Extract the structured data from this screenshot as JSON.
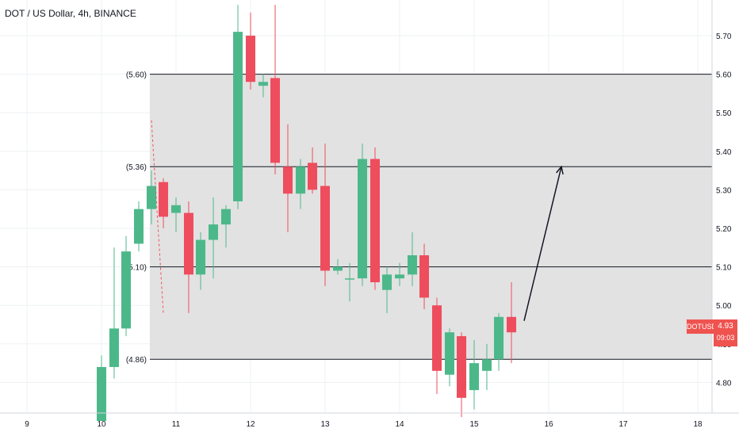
{
  "header": {
    "symbol_title": "DOT / US Dollar, 4h, BINANCE"
  },
  "badges": {
    "ticker": "DOTUSD",
    "last_price": "4.93",
    "countdown": "09:03"
  },
  "colors": {
    "up": "#4cb88a",
    "down": "#ee4d5d",
    "zone": "#e0e0e0",
    "grid": "#eef0f3",
    "level_line": "#131722",
    "badge": "#ef5350"
  },
  "chart_data": {
    "type": "candlestick",
    "title": "DOT / US Dollar, 4h, BINANCE",
    "ylim": [
      4.68,
      5.8
    ],
    "xlim": [
      9.0,
      18.25
    ],
    "y_ticks": [
      "4.80",
      "4.90",
      "5.00",
      "5.10",
      "5.20",
      "5.30",
      "5.40",
      "5.50",
      "5.60",
      "5.70"
    ],
    "x_ticks": [
      "9",
      "10",
      "11",
      "12",
      "13",
      "14",
      "15",
      "16",
      "17",
      "18"
    ],
    "grid": true,
    "zone": {
      "from": 4.86,
      "to": 5.6
    },
    "levels": [
      {
        "value": 5.6,
        "label": "(5.60)"
      },
      {
        "value": 5.36,
        "label": "(5.36)"
      },
      {
        "value": 5.1,
        "label": "(5.10)"
      },
      {
        "value": 4.86,
        "label": "(4.86)"
      }
    ],
    "candles": [
      {
        "x": 10.0,
        "o": 4.7,
        "h": 4.87,
        "l": 4.7,
        "c": 4.84
      },
      {
        "x": 10.17,
        "o": 4.84,
        "h": 5.15,
        "l": 4.81,
        "c": 4.94
      },
      {
        "x": 10.33,
        "o": 4.94,
        "h": 5.18,
        "l": 4.92,
        "c": 5.14
      },
      {
        "x": 10.5,
        "o": 5.16,
        "h": 5.27,
        "l": 5.14,
        "c": 5.25
      },
      {
        "x": 10.67,
        "o": 5.25,
        "h": 5.35,
        "l": 5.21,
        "c": 5.31
      },
      {
        "x": 10.83,
        "o": 5.32,
        "h": 5.33,
        "l": 5.2,
        "c": 5.23
      },
      {
        "x": 11.0,
        "o": 5.24,
        "h": 5.28,
        "l": 5.19,
        "c": 5.26
      },
      {
        "x": 11.17,
        "o": 5.24,
        "h": 5.27,
        "l": 4.98,
        "c": 5.08
      },
      {
        "x": 11.33,
        "o": 5.08,
        "h": 5.19,
        "l": 5.04,
        "c": 5.17
      },
      {
        "x": 11.5,
        "o": 5.17,
        "h": 5.28,
        "l": 5.07,
        "c": 5.21
      },
      {
        "x": 11.67,
        "o": 5.21,
        "h": 5.26,
        "l": 5.15,
        "c": 5.25
      },
      {
        "x": 11.83,
        "o": 5.27,
        "h": 5.78,
        "l": 5.25,
        "c": 5.71
      },
      {
        "x": 12.0,
        "o": 5.7,
        "h": 5.76,
        "l": 5.56,
        "c": 5.58
      },
      {
        "x": 12.17,
        "o": 5.57,
        "h": 5.6,
        "l": 5.54,
        "c": 5.58
      },
      {
        "x": 12.33,
        "o": 5.59,
        "h": 5.78,
        "l": 5.34,
        "c": 5.37
      },
      {
        "x": 12.5,
        "o": 5.36,
        "h": 5.47,
        "l": 5.19,
        "c": 5.29
      },
      {
        "x": 12.67,
        "o": 5.29,
        "h": 5.38,
        "l": 5.25,
        "c": 5.36
      },
      {
        "x": 12.83,
        "o": 5.37,
        "h": 5.41,
        "l": 5.29,
        "c": 5.3
      },
      {
        "x": 13.0,
        "o": 5.31,
        "h": 5.42,
        "l": 5.05,
        "c": 5.09
      },
      {
        "x": 13.17,
        "o": 5.09,
        "h": 5.12,
        "l": 5.08,
        "c": 5.1
      },
      {
        "x": 13.33,
        "o": 5.07,
        "h": 5.11,
        "l": 5.01,
        "c": 5.07
      },
      {
        "x": 13.5,
        "o": 5.07,
        "h": 5.42,
        "l": 5.05,
        "c": 5.38
      },
      {
        "x": 13.67,
        "o": 5.38,
        "h": 5.41,
        "l": 5.04,
        "c": 5.06
      },
      {
        "x": 13.83,
        "o": 5.04,
        "h": 5.1,
        "l": 4.98,
        "c": 5.08
      },
      {
        "x": 14.0,
        "o": 5.07,
        "h": 5.11,
        "l": 5.05,
        "c": 5.08
      },
      {
        "x": 14.17,
        "o": 5.08,
        "h": 5.19,
        "l": 5.05,
        "c": 5.13
      },
      {
        "x": 14.33,
        "o": 5.13,
        "h": 5.16,
        "l": 4.99,
        "c": 5.02
      },
      {
        "x": 14.5,
        "o": 5.0,
        "h": 5.02,
        "l": 4.77,
        "c": 4.83
      },
      {
        "x": 14.67,
        "o": 4.82,
        "h": 4.94,
        "l": 4.79,
        "c": 4.93
      },
      {
        "x": 14.83,
        "o": 4.92,
        "h": 4.93,
        "l": 4.71,
        "c": 4.76
      },
      {
        "x": 15.0,
        "o": 4.78,
        "h": 4.91,
        "l": 4.73,
        "c": 4.85
      },
      {
        "x": 15.17,
        "o": 4.83,
        "h": 4.9,
        "l": 4.78,
        "c": 4.86
      },
      {
        "x": 15.33,
        "o": 4.86,
        "h": 4.98,
        "l": 4.83,
        "c": 4.97
      },
      {
        "x": 15.5,
        "o": 4.97,
        "h": 5.06,
        "l": 4.85,
        "c": 4.93
      }
    ],
    "annotations": [
      {
        "type": "dashed-line",
        "color": "#ee4d5d",
        "from": {
          "x": 10.67,
          "y": 5.48
        },
        "to": {
          "x": 10.83,
          "y": 4.98
        }
      },
      {
        "type": "arrow",
        "color": "#131722",
        "from": {
          "x": 15.67,
          "y": 4.96
        },
        "to": {
          "x": 16.17,
          "y": 5.36
        }
      }
    ]
  }
}
